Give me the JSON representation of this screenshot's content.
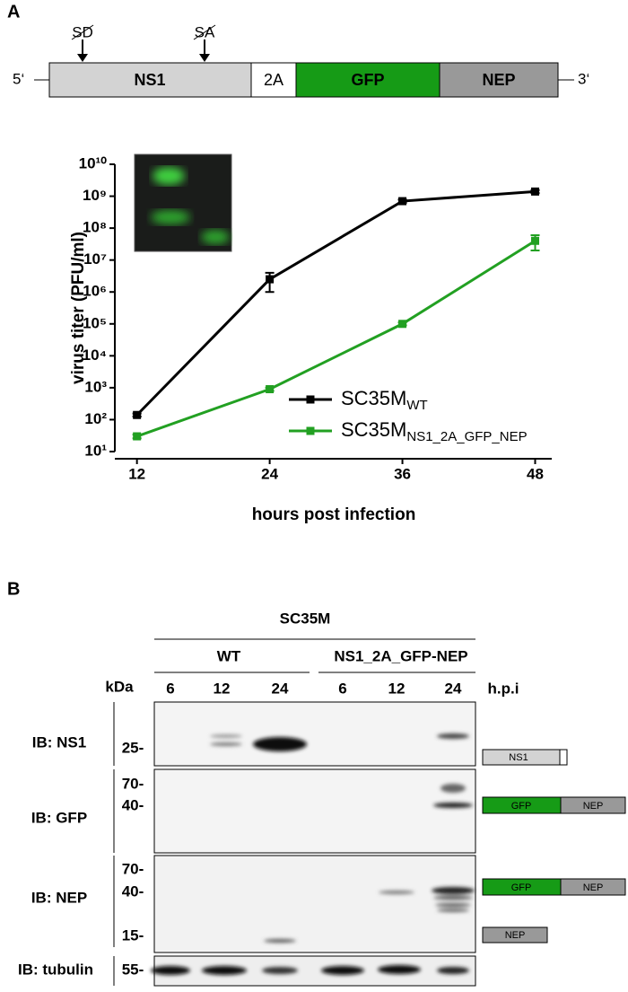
{
  "panel_a": {
    "label": "A",
    "five_prime": "5‘",
    "three_prime": "3‘",
    "sites": [
      "SD",
      "SA"
    ],
    "segments": [
      "NS1",
      "2A",
      "GFP",
      "NEP"
    ]
  },
  "chart_data": {
    "type": "line",
    "y_label": "virus titer (PFU/ml)",
    "x_label": "hours post infection",
    "x": [
      12,
      24,
      36,
      48
    ],
    "xlim": [
      10,
      49.5
    ],
    "xticks": [
      12,
      24,
      36,
      48
    ],
    "ylim": [
      10,
      10000000000
    ],
    "y_scale": "log",
    "yticks": [
      {
        "value": 10,
        "label": "10¹"
      },
      {
        "value": 100,
        "label": "10²"
      },
      {
        "value": 1000,
        "label": "10³"
      },
      {
        "value": 10000,
        "label": "10⁴"
      },
      {
        "value": 100000,
        "label": "10⁵"
      },
      {
        "value": 1000000,
        "label": "10⁶"
      },
      {
        "value": 10000000,
        "label": "10⁷"
      },
      {
        "value": 100000000,
        "label": "10⁸"
      },
      {
        "value": 1000000000,
        "label": "10⁹"
      },
      {
        "value": 10000000000,
        "label": "10¹⁰"
      }
    ],
    "series": [
      {
        "name": "SC35M",
        "name_subscript": "WT",
        "color": "#000000",
        "values": [
          140,
          2500000,
          700000000,
          1400000000
        ],
        "errors": [
          15,
          1500000,
          80000000,
          150000000
        ]
      },
      {
        "name": "SC35M",
        "name_subscript": "NS1_2A_GFP_NEP",
        "color": "#22a022",
        "values": [
          30,
          900,
          100000,
          40000000
        ],
        "errors": [
          4,
          100,
          10000,
          20000000
        ]
      }
    ]
  },
  "panel_b": {
    "label": "B",
    "strain": "SC35M",
    "groups": [
      "WT",
      "NS1_2A_GFP-NEP"
    ],
    "kda": "kDa",
    "lanes": [
      "6",
      "12",
      "24",
      "6",
      "12",
      "24"
    ],
    "hpi": "h.p.i",
    "blots": [
      {
        "label": "IB: NS1",
        "markers": [
          "25-"
        ]
      },
      {
        "label": "IB: GFP",
        "markers": [
          "70-",
          "40-"
        ]
      },
      {
        "label": "IB: NEP",
        "markers": [
          "70-",
          "40-",
          "15-"
        ]
      },
      {
        "label": "IB: tubulin",
        "markers": [
          "55-"
        ]
      }
    ],
    "schemes": [
      "NS1",
      "GFP",
      "NEP",
      "GFP",
      "NEP",
      "NEP"
    ]
  }
}
